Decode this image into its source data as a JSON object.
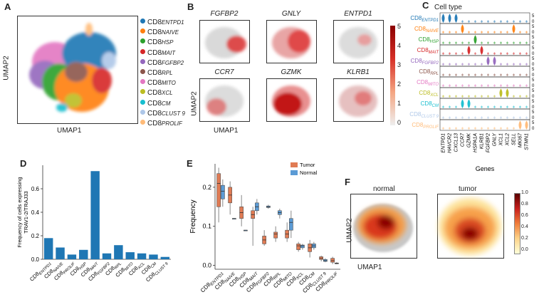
{
  "panels": {
    "A": "A",
    "B": "B",
    "C": "C",
    "D": "D",
    "E": "E",
    "F": "F"
  },
  "panelA": {
    "xlabel": "UMAP1",
    "ylabel": "UMAP2"
  },
  "legend": [
    {
      "prefix": "CD8",
      "sub": "ENTPD1",
      "color": "#1f77b4"
    },
    {
      "prefix": "CD8",
      "sub": "NAIVE",
      "color": "#ff7f0e"
    },
    {
      "prefix": "CD8",
      "sub": "HSP",
      "color": "#2ca02c"
    },
    {
      "prefix": "CD8",
      "sub": "MAIT",
      "color": "#d62728"
    },
    {
      "prefix": "CD8",
      "sub": "FGFBP2",
      "color": "#9467bd"
    },
    {
      "prefix": "CD8",
      "sub": "RPL",
      "color": "#8c564b"
    },
    {
      "prefix": "CD8",
      "sub": "MITO",
      "color": "#e377c2"
    },
    {
      "prefix": "CD8",
      "sub": "XCL",
      "color": "#bcbd22"
    },
    {
      "prefix": "CD8",
      "sub": "CM",
      "color": "#17becf"
    },
    {
      "prefix": "CD8",
      "sub": "CLUST 9",
      "color": "#aec7e8"
    },
    {
      "prefix": "CD8",
      "sub": "PROLIF",
      "color": "#ffbb78"
    }
  ],
  "panelB": {
    "genes": [
      "FGFBP2",
      "GNLY",
      "ENTPD1",
      "CCR7",
      "GZMK",
      "KLRB1"
    ],
    "xlabel": "UMAP1",
    "ylabel": "UMAP2",
    "colorbar_ticks": [
      "5",
      "4",
      "3",
      "2",
      "1",
      "0"
    ]
  },
  "panelC": {
    "title": "Cell type",
    "genes": [
      "ENTPD1",
      "HAVCR2",
      "CXCL13",
      "CCR7",
      "GZMK",
      "HSPA1A",
      "KLRB1",
      "FGFBP2",
      "GNLY",
      "XCL1",
      "XCL2",
      "SELL",
      "MKI67",
      "STMN1"
    ],
    "xlabel": "Genes",
    "zero_label": "0",
    "five_label": "5"
  },
  "chart_data": [
    {
      "panel": "D",
      "type": "bar",
      "categories": [
        "CD8ENTPD1",
        "CD8NAIVE",
        "CD8PROLIF",
        "CD8HSP",
        "CD8MAIT",
        "CD8FGFBP2",
        "CD8RPL",
        "CD8MITO",
        "CD8XCL",
        "CD8CM",
        "CD8CLUST 9"
      ],
      "tick_labels": [
        {
          "p": "CD8",
          "s": "ENTPD1"
        },
        {
          "p": "CD8",
          "s": "NAIVE"
        },
        {
          "p": "CD8",
          "s": "PROLIF"
        },
        {
          "p": "CD8",
          "s": "HSP"
        },
        {
          "p": "CD8",
          "s": "MAIT"
        },
        {
          "p": "CD8",
          "s": "FGFBP2"
        },
        {
          "p": "CD8",
          "s": "RPL"
        },
        {
          "p": "CD8",
          "s": "MITO"
        },
        {
          "p": "CD8",
          "s": "XCL"
        },
        {
          "p": "CD8",
          "s": "CM"
        },
        {
          "p": "CD8",
          "s": "CLUST 9"
        }
      ],
      "values": [
        0.18,
        0.1,
        0.04,
        0.08,
        0.75,
        0.05,
        0.12,
        0.06,
        0.05,
        0.04,
        0.02
      ],
      "ylabel": "Frequency of cells expressing\nTRAV1-2/TRAJ33",
      "ylabel_lines": [
        "Frequency of cells expressing",
        "TRAV1-2/TRAJ33"
      ],
      "ylim": [
        0,
        0.8
      ],
      "yticks": [
        0.0,
        0.2,
        0.4,
        0.6
      ],
      "ytick_labels": [
        "0.0",
        "0.2",
        "0.4",
        "0.6"
      ],
      "color": "#1f77b4"
    },
    {
      "panel": "E",
      "type": "box",
      "categories": [
        "CD8ENTPD1",
        "CD8NAIVE",
        "CD8HSP",
        "CD8MAIT",
        "CD8FGFBP2",
        "CD8RPL",
        "CD8MITO",
        "CD8XCL",
        "CD8CM",
        "CD8CLUST 9",
        "CD8PROLIF"
      ],
      "tick_labels": [
        {
          "p": "CD8",
          "s": "ENTPD1"
        },
        {
          "p": "CD8",
          "s": "NAIVE"
        },
        {
          "p": "CD8",
          "s": "HSP"
        },
        {
          "p": "CD8",
          "s": "MAIT"
        },
        {
          "p": "CD8",
          "s": "FGFBP2"
        },
        {
          "p": "CD8",
          "s": "RPL"
        },
        {
          "p": "CD8",
          "s": "MITO"
        },
        {
          "p": "CD8",
          "s": "XCL"
        },
        {
          "p": "CD8",
          "s": "CM"
        },
        {
          "p": "CD8",
          "s": "CLUST 9"
        },
        {
          "p": "CD8",
          "s": "PROLIF"
        }
      ],
      "ylabel": "Frequency",
      "ylim": [
        -0.01,
        0.26
      ],
      "yticks": [
        0.0,
        0.1,
        0.2
      ],
      "ytick_labels": [
        "0.0",
        "0.1",
        "0.2"
      ],
      "series": [
        {
          "name": "Tumor",
          "color": "#e07b54",
          "boxes": [
            {
              "min": 0.11,
              "q1": 0.15,
              "med": 0.21,
              "q3": 0.235,
              "max": 0.25
            },
            {
              "min": 0.13,
              "q1": 0.16,
              "med": 0.18,
              "q3": 0.2,
              "max": 0.215
            },
            {
              "min": 0.1,
              "q1": 0.12,
              "med": 0.135,
              "q3": 0.15,
              "max": 0.18
            },
            {
              "min": 0.05,
              "q1": 0.12,
              "med": 0.13,
              "q3": 0.14,
              "max": 0.15
            },
            {
              "min": 0.05,
              "q1": 0.055,
              "med": 0.065,
              "q3": 0.075,
              "max": 0.09
            },
            {
              "min": 0.06,
              "q1": 0.07,
              "med": 0.08,
              "q3": 0.085,
              "max": 0.1
            },
            {
              "min": 0.06,
              "q1": 0.07,
              "med": 0.08,
              "q3": 0.09,
              "max": 0.11
            },
            {
              "min": 0.035,
              "q1": 0.04,
              "med": 0.05,
              "q3": 0.055,
              "max": 0.06
            },
            {
              "min": 0.02,
              "q1": 0.035,
              "med": 0.045,
              "q3": 0.055,
              "max": 0.065
            },
            {
              "min": 0.01,
              "q1": 0.015,
              "med": 0.018,
              "q3": 0.022,
              "max": 0.025
            },
            {
              "min": 0.003,
              "q1": 0.008,
              "med": 0.012,
              "q3": 0.018,
              "max": 0.022
            }
          ]
        },
        {
          "name": "Normal",
          "color": "#5b9bd5",
          "boxes": [
            {
              "min": 0.15,
              "q1": 0.17,
              "med": 0.19,
              "q3": 0.205,
              "max": 0.22
            },
            {
              "min": 0.12,
              "q1": 0.12,
              "med": 0.12,
              "q3": 0.12,
              "max": 0.12
            },
            {
              "min": 0.09,
              "q1": 0.09,
              "med": 0.09,
              "q3": 0.09,
              "max": 0.09
            },
            {
              "min": 0.13,
              "q1": 0.14,
              "med": 0.15,
              "q3": 0.16,
              "max": 0.17
            },
            {
              "min": 0.145,
              "q1": 0.148,
              "med": 0.15,
              "q3": 0.152,
              "max": 0.155
            },
            {
              "min": 0.12,
              "q1": 0.13,
              "med": 0.135,
              "q3": 0.14,
              "max": 0.145
            },
            {
              "min": 0.07,
              "q1": 0.09,
              "med": 0.11,
              "q3": 0.12,
              "max": 0.14
            },
            {
              "min": 0.04,
              "q1": 0.045,
              "med": 0.05,
              "q3": 0.052,
              "max": 0.055
            },
            {
              "min": 0.04,
              "q1": 0.045,
              "med": 0.05,
              "q3": 0.055,
              "max": 0.06
            },
            {
              "min": 0.008,
              "q1": 0.01,
              "med": 0.012,
              "q3": 0.015,
              "max": 0.018
            },
            {
              "min": 0.003,
              "q1": 0.004,
              "med": 0.005,
              "q3": 0.006,
              "max": 0.008
            }
          ]
        }
      ]
    }
  ],
  "panelF": {
    "titles": [
      "normal",
      "tumor"
    ],
    "xlabel": "UMAP1",
    "ylabel": "UMAP2",
    "colorbar_ticks": [
      "1.0",
      "0.8",
      "0.6",
      "0.4",
      "0.2",
      "0.0"
    ]
  }
}
